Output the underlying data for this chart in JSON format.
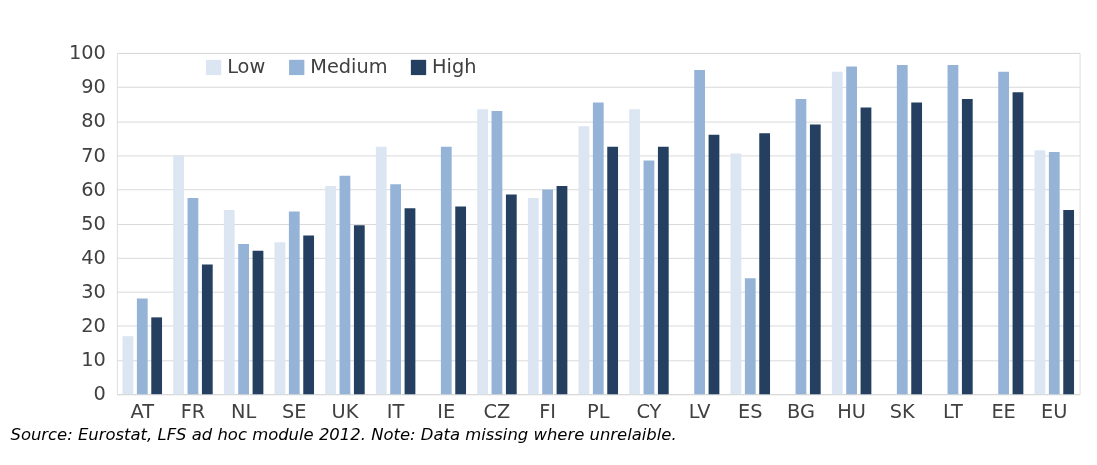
{
  "chart_data": {
    "type": "bar",
    "categories": [
      "AT",
      "FR",
      "NL",
      "SE",
      "UK",
      "IT",
      "IE",
      "CZ",
      "FI",
      "PL",
      "CY",
      "LV",
      "ES",
      "BG",
      "HU",
      "SK",
      "LT",
      "EE",
      "EU"
    ],
    "series": [
      {
        "name": "Low",
        "color": "#dce6f2",
        "values": [
          17,
          70,
          54,
          44.5,
          61,
          72.5,
          null,
          83.5,
          57.5,
          78.5,
          83.5,
          null,
          70.5,
          null,
          94.5,
          null,
          null,
          null,
          71.5
        ]
      },
      {
        "name": "Medium",
        "color": "#95b3d7",
        "values": [
          28,
          57.5,
          44,
          53.5,
          64,
          61.5,
          72.5,
          83,
          60,
          85.5,
          68.5,
          95,
          34,
          86.5,
          96,
          96.5,
          96.5,
          94.5,
          71
        ]
      },
      {
        "name": "High",
        "color": "#243f60",
        "values": [
          22.5,
          38,
          42,
          46.5,
          49.5,
          54.5,
          55,
          58.5,
          61,
          72.5,
          72.5,
          76,
          76.5,
          79,
          84,
          85.5,
          86.5,
          88.5,
          54
        ]
      }
    ],
    "ylim": [
      0,
      100
    ],
    "yticks": [
      0,
      10,
      20,
      30,
      40,
      50,
      60,
      70,
      80,
      90,
      100
    ],
    "grid": "y",
    "legend": "top left",
    "annotations": [
      "Source: Eurostat, LFS ad hoc module 2012. Note: Data missing where unrelaible."
    ]
  }
}
